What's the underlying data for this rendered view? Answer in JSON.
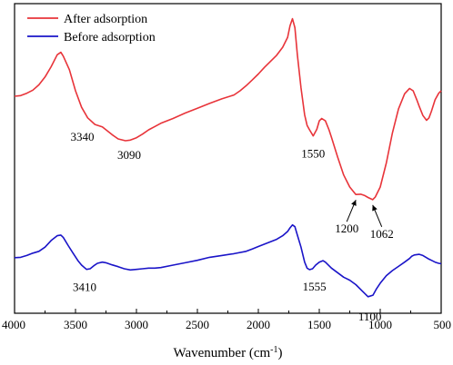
{
  "chart_data": {
    "type": "line",
    "title": "",
    "xlabel": "Wavenumber (cm",
    "xlabel_sup": "-1",
    "xlabel_end": ")",
    "ylabel": "",
    "xlim": [
      4000,
      500
    ],
    "x_reversed": true,
    "y_ticks_shown": false,
    "xticks": [
      4000,
      3500,
      3000,
      2500,
      2000,
      1500,
      1000,
      500
    ],
    "xtick_labels": [
      "4000",
      "3500",
      "3000",
      "2500",
      "2000",
      "1500",
      "1000",
      "500"
    ],
    "grid": false,
    "legend_position": "top-left",
    "series": [
      {
        "name": "After adsorption",
        "color": "#e8343a",
        "x": [
          4000,
          3950,
          3900,
          3850,
          3800,
          3750,
          3700,
          3650,
          3620,
          3600,
          3550,
          3500,
          3450,
          3400,
          3340,
          3280,
          3200,
          3150,
          3090,
          3050,
          3000,
          2950,
          2900,
          2850,
          2800,
          2750,
          2700,
          2600,
          2500,
          2400,
          2300,
          2200,
          2150,
          2100,
          2050,
          2000,
          1950,
          1900,
          1850,
          1800,
          1760,
          1740,
          1720,
          1700,
          1680,
          1650,
          1620,
          1600,
          1580,
          1550,
          1520,
          1500,
          1480,
          1450,
          1420,
          1400,
          1350,
          1300,
          1250,
          1200,
          1160,
          1130,
          1100,
          1062,
          1040,
          1000,
          950,
          900,
          850,
          800,
          760,
          730,
          700,
          680,
          650,
          620,
          600,
          580,
          550,
          520,
          500
        ],
        "y": [
          0.622,
          0.624,
          0.632,
          0.642,
          0.66,
          0.686,
          0.72,
          0.76,
          0.768,
          0.755,
          0.71,
          0.64,
          0.585,
          0.55,
          0.528,
          0.52,
          0.494,
          0.48,
          0.474,
          0.476,
          0.484,
          0.496,
          0.51,
          0.521,
          0.532,
          0.54,
          0.548,
          0.566,
          0.582,
          0.598,
          0.613,
          0.626,
          0.64,
          0.657,
          0.676,
          0.696,
          0.718,
          0.738,
          0.758,
          0.785,
          0.818,
          0.856,
          0.88,
          0.85,
          0.76,
          0.65,
          0.56,
          0.525,
          0.51,
          0.49,
          0.512,
          0.54,
          0.548,
          0.54,
          0.51,
          0.485,
          0.42,
          0.36,
          0.32,
          0.295,
          0.296,
          0.292,
          0.285,
          0.278,
          0.287,
          0.32,
          0.4,
          0.5,
          0.58,
          0.63,
          0.648,
          0.64,
          0.61,
          0.588,
          0.558,
          0.542,
          0.55,
          0.572,
          0.61,
          0.632,
          0.64
        ]
      },
      {
        "name": "Before adsorption",
        "color": "#1a14c8",
        "x": [
          4000,
          3950,
          3900,
          3850,
          3800,
          3750,
          3700,
          3650,
          3620,
          3600,
          3560,
          3520,
          3480,
          3450,
          3410,
          3380,
          3350,
          3320,
          3280,
          3250,
          3200,
          3150,
          3100,
          3050,
          3000,
          2950,
          2900,
          2850,
          2800,
          2700,
          2600,
          2500,
          2400,
          2300,
          2200,
          2100,
          2050,
          2000,
          1950,
          1900,
          1850,
          1800,
          1760,
          1740,
          1720,
          1700,
          1680,
          1650,
          1620,
          1600,
          1580,
          1555,
          1530,
          1500,
          1470,
          1450,
          1400,
          1350,
          1300,
          1250,
          1200,
          1150,
          1100,
          1060,
          1030,
          1000,
          950,
          900,
          850,
          800,
          760,
          740,
          720,
          700,
          680,
          650,
          620,
          600,
          580,
          550,
          520,
          500
        ],
        "y": [
          0.085,
          0.086,
          0.092,
          0.1,
          0.106,
          0.12,
          0.142,
          0.158,
          0.16,
          0.152,
          0.125,
          0.1,
          0.075,
          0.06,
          0.046,
          0.048,
          0.058,
          0.066,
          0.07,
          0.068,
          0.061,
          0.055,
          0.048,
          0.044,
          0.046,
          0.048,
          0.05,
          0.05,
          0.052,
          0.06,
          0.068,
          0.076,
          0.086,
          0.092,
          0.098,
          0.106,
          0.114,
          0.122,
          0.13,
          0.138,
          0.146,
          0.158,
          0.172,
          0.184,
          0.194,
          0.188,
          0.16,
          0.12,
          0.07,
          0.05,
          0.045,
          0.048,
          0.06,
          0.07,
          0.075,
          0.07,
          0.05,
          0.035,
          0.02,
          0.01,
          -0.005,
          -0.025,
          -0.045,
          -0.04,
          -0.018,
          0.0,
          0.025,
          0.042,
          0.056,
          0.07,
          0.082,
          0.09,
          0.094,
          0.095,
          0.096,
          0.092,
          0.085,
          0.08,
          0.076,
          0.07,
          0.066,
          0.065
        ]
      }
    ],
    "annotations": [
      {
        "text": "3340",
        "x": 3340,
        "y": 0.528
      },
      {
        "text": "3090",
        "x": 3090,
        "y": 0.474
      },
      {
        "text": "1550",
        "x": 1550,
        "y": 0.49
      },
      {
        "text": "1200",
        "x": 1200,
        "y": 0.295,
        "arrow": true
      },
      {
        "text": "1062",
        "x": 1062,
        "y": 0.278,
        "arrow": true
      },
      {
        "text": "3410",
        "x": 3410,
        "y": 0.046
      },
      {
        "text": "1555",
        "x": 1555,
        "y": 0.048
      },
      {
        "text": "1100",
        "x": 1100,
        "y": -0.045
      }
    ]
  }
}
